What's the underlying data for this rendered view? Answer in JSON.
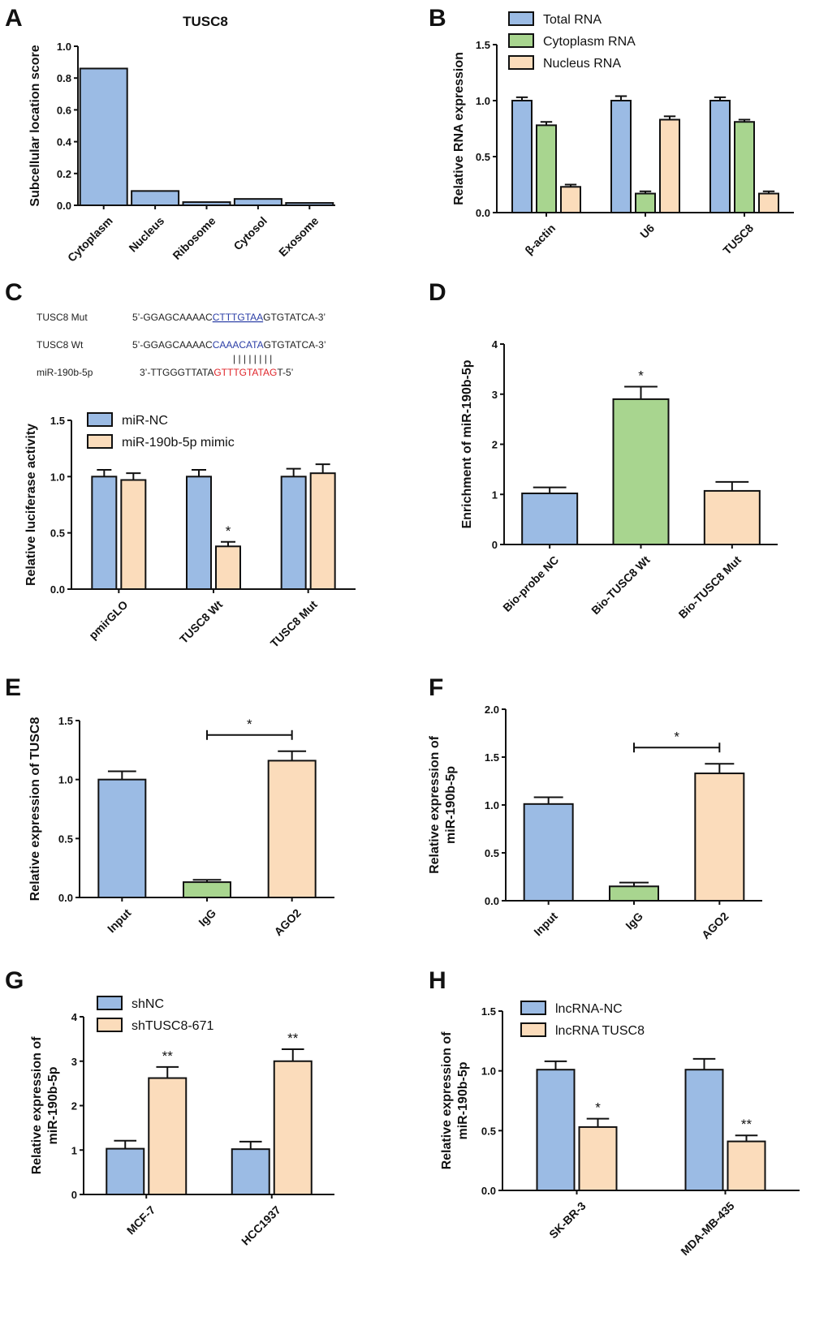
{
  "colors": {
    "blue": "#9bbbe4",
    "green": "#a8d58f",
    "peach": "#fbdcbb",
    "seq_blue": "#2b3ea6",
    "seq_red": "#e0262b",
    "ink": "#111111"
  },
  "panel_labels": [
    "A",
    "B",
    "C",
    "D",
    "E",
    "F",
    "G",
    "H"
  ],
  "sequences": {
    "mut_name": "TUSC8 Mut",
    "mut_prefix": "5’-GGAGCAAAAC",
    "mut_core": "CTTTGTAA",
    "mut_suffix": "GTGTATCA-3’",
    "wt_name": "TUSC8 Wt",
    "wt_prefix": "5’-GGAGCAAAAC",
    "wt_core": "CAAACATA",
    "wt_suffix": "GTGTATCA-3’",
    "pairing": "| | | | | | | |",
    "mir_name": "miR-190b-5p",
    "mir_prefix": "3’-TTGGGTTATA",
    "mir_core": "GTTTGTATAG",
    "mir_suffix": "T-5’"
  },
  "chart_data": [
    {
      "panel": "A",
      "type": "bar",
      "title": "TUSC8",
      "ylabel": "Subcellular location score",
      "xlabel": "",
      "ylim": [
        0,
        1.0
      ],
      "yticks": [
        "0.0",
        "0.2",
        "0.4",
        "0.6",
        "0.8",
        "1.0"
      ],
      "categories": [
        "Cytoplasm",
        "Nucleus",
        "Ribosome",
        "Cytosol",
        "Exosome"
      ],
      "series": [
        {
          "name": "score",
          "color": "blue",
          "values": [
            0.86,
            0.09,
            0.02,
            0.04,
            0.015
          ],
          "errors": [
            0,
            0,
            0,
            0,
            0
          ]
        }
      ]
    },
    {
      "panel": "B",
      "type": "bar",
      "title": "",
      "ylabel": "Relative RNA expression",
      "xlabel": "",
      "ylim": [
        0,
        1.5
      ],
      "yticks": [
        "0.0",
        "0.5",
        "1.0",
        "1.5"
      ],
      "categories": [
        "β-actin",
        "U6",
        "TUSC8"
      ],
      "legend": [
        "Total RNA",
        "Cytoplasm RNA",
        "Nucleus RNA"
      ],
      "series": [
        {
          "name": "Total RNA",
          "color": "blue",
          "values": [
            1.0,
            1.0,
            1.0
          ],
          "errors": [
            0.03,
            0.04,
            0.03
          ]
        },
        {
          "name": "Cytoplasm RNA",
          "color": "green",
          "values": [
            0.78,
            0.17,
            0.81
          ],
          "errors": [
            0.03,
            0.02,
            0.02
          ]
        },
        {
          "name": "Nucleus RNA",
          "color": "peach",
          "values": [
            0.23,
            0.83,
            0.17
          ],
          "errors": [
            0.02,
            0.03,
            0.02
          ]
        }
      ]
    },
    {
      "panel": "C",
      "type": "bar",
      "title": "",
      "ylabel": "Relative luciferase activity",
      "xlabel": "",
      "ylim": [
        0,
        1.5
      ],
      "yticks": [
        "0.0",
        "0.5",
        "1.0",
        "1.5"
      ],
      "categories": [
        "pmirGLO",
        "TUSC8 Wt",
        "TUSC8 Mut"
      ],
      "legend": [
        "miR-NC",
        "miR-190b-5p mimic"
      ],
      "series": [
        {
          "name": "miR-NC",
          "color": "blue",
          "values": [
            1.0,
            1.0,
            1.0
          ],
          "errors": [
            0.06,
            0.06,
            0.07
          ],
          "stars": [
            "",
            "",
            ""
          ]
        },
        {
          "name": "miR-190b-5p mimic",
          "color": "peach",
          "values": [
            0.97,
            0.38,
            1.03
          ],
          "errors": [
            0.06,
            0.04,
            0.08
          ],
          "stars": [
            "",
            "*",
            ""
          ]
        }
      ]
    },
    {
      "panel": "D",
      "type": "bar",
      "title": "",
      "ylabel": "Enrichment of miR-190b-5p",
      "xlabel": "",
      "ylim": [
        0,
        4
      ],
      "yticks": [
        "0",
        "1",
        "2",
        "3",
        "4"
      ],
      "categories": [
        "Bio-probe NC",
        "Bio-TUSC8 Wt",
        "Bio-TUSC8 Mut"
      ],
      "series": [
        {
          "name": "enrichment",
          "colors": [
            "blue",
            "green",
            "peach"
          ],
          "values": [
            1.02,
            2.9,
            1.07
          ],
          "errors": [
            0.12,
            0.25,
            0.18
          ],
          "stars": [
            "",
            "*",
            ""
          ]
        }
      ]
    },
    {
      "panel": "E",
      "type": "bar",
      "title": "",
      "ylabel": "Relative expression of TUSC8",
      "xlabel": "",
      "ylim": [
        0,
        1.5
      ],
      "yticks": [
        "0.0",
        "0.5",
        "1.0",
        "1.5"
      ],
      "categories": [
        "Input",
        "IgG",
        "AGO2"
      ],
      "bracket": {
        "from": 1,
        "to": 2,
        "label": "*"
      },
      "series": [
        {
          "name": "expression",
          "colors": [
            "blue",
            "green",
            "peach"
          ],
          "values": [
            1.0,
            0.13,
            1.16
          ],
          "errors": [
            0.07,
            0.02,
            0.08
          ]
        }
      ]
    },
    {
      "panel": "F",
      "type": "bar",
      "title": "",
      "ylabel": "Relative expression of miR-190b-5p",
      "ylabel_lines": [
        "Relative expression of",
        "miR-190b-5p"
      ],
      "xlabel": "",
      "ylim": [
        0,
        2.0
      ],
      "yticks": [
        "0.0",
        "0.5",
        "1.0",
        "1.5",
        "2.0"
      ],
      "categories": [
        "Input",
        "IgG",
        "AGO2"
      ],
      "bracket": {
        "from": 1,
        "to": 2,
        "label": "*"
      },
      "series": [
        {
          "name": "expression",
          "colors": [
            "blue",
            "green",
            "peach"
          ],
          "values": [
            1.01,
            0.15,
            1.33
          ],
          "errors": [
            0.07,
            0.04,
            0.1
          ]
        }
      ]
    },
    {
      "panel": "G",
      "type": "bar",
      "title": "",
      "ylabel": "Relative expression of miR-190b-5p",
      "ylabel_lines": [
        "Relative expression of",
        "miR-190b-5p"
      ],
      "xlabel": "",
      "ylim": [
        0,
        4
      ],
      "yticks": [
        "0",
        "1",
        "2",
        "3",
        "4"
      ],
      "categories": [
        "MCF-7",
        "HCC1937"
      ],
      "legend": [
        "shNC",
        "shTUSC8-671"
      ],
      "series": [
        {
          "name": "shNC",
          "color": "blue",
          "values": [
            1.03,
            1.02
          ],
          "errors": [
            0.18,
            0.17
          ],
          "stars": [
            "",
            ""
          ]
        },
        {
          "name": "shTUSC8-671",
          "color": "peach",
          "values": [
            2.62,
            3.0
          ],
          "errors": [
            0.25,
            0.27
          ],
          "stars": [
            "**",
            "**"
          ]
        }
      ]
    },
    {
      "panel": "H",
      "type": "bar",
      "title": "",
      "ylabel": "Relative expression of miR-190b-5p",
      "ylabel_lines": [
        "Relative expression of",
        "miR-190b-5p"
      ],
      "xlabel": "",
      "ylim": [
        0,
        1.5
      ],
      "yticks": [
        "0.0",
        "0.5",
        "1.0",
        "1.5"
      ],
      "categories": [
        "SK-BR-3",
        "MDA-MB-435"
      ],
      "legend": [
        "lncRNA-NC",
        "lncRNA TUSC8"
      ],
      "series": [
        {
          "name": "lncRNA-NC",
          "color": "blue",
          "values": [
            1.01,
            1.01
          ],
          "errors": [
            0.07,
            0.09
          ],
          "stars": [
            "",
            ""
          ]
        },
        {
          "name": "lncRNA TUSC8",
          "color": "peach",
          "values": [
            0.53,
            0.41
          ],
          "errors": [
            0.07,
            0.05
          ],
          "stars": [
            "*",
            "**"
          ]
        }
      ]
    }
  ]
}
